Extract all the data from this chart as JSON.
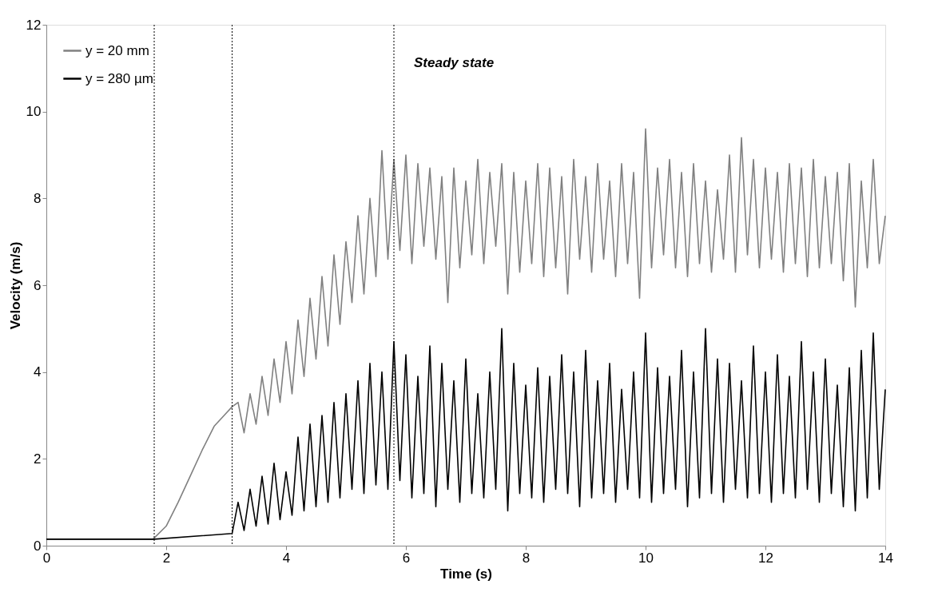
{
  "chart_data": {
    "type": "line",
    "xlabel": "Time (s)",
    "ylabel": "Velocity (m/s)",
    "xlim": [
      0,
      14
    ],
    "xticks": [
      0,
      2,
      4,
      6,
      8,
      10,
      12,
      14
    ],
    "ylim": [
      0,
      12
    ],
    "yticks": [
      0,
      2,
      4,
      6,
      8,
      10,
      12
    ],
    "grid": false,
    "legend": "top left",
    "marker": "none",
    "line_style": "solid",
    "ref_lines": [
      {
        "axis": "x",
        "value": 1.8,
        "label": null,
        "color": "#000000",
        "line_style": "dotted"
      },
      {
        "axis": "x",
        "value": 3.1,
        "label": null,
        "color": "#000000",
        "line_style": "dotted"
      },
      {
        "axis": "x",
        "value": 5.8,
        "label": "Steady state",
        "color": "#000000",
        "line_style": "dotted"
      }
    ],
    "series": [
      {
        "name": "y = 20 mm",
        "color": "#808080",
        "x": [
          0,
          1.78,
          2.0,
          2.2,
          2.4,
          2.6,
          2.8,
          3.0,
          3.1,
          3.2,
          3.3,
          3.4,
          3.5,
          3.6,
          3.7,
          3.8,
          3.9,
          4.0,
          4.1,
          4.2,
          4.3,
          4.4,
          4.5,
          4.6,
          4.7,
          4.8,
          4.9,
          5.0,
          5.1,
          5.2,
          5.3,
          5.4,
          5.5,
          5.6,
          5.7,
          5.8,
          5.9,
          6.0,
          6.1,
          6.2,
          6.3,
          6.4,
          6.5,
          6.6,
          6.7,
          6.8,
          6.9,
          7.0,
          7.1,
          7.2,
          7.3,
          7.4,
          7.5,
          7.6,
          7.7,
          7.8,
          7.9,
          8.0,
          8.1,
          8.2,
          8.3,
          8.4,
          8.5,
          8.6,
          8.7,
          8.8,
          8.9,
          9.0,
          9.1,
          9.2,
          9.3,
          9.4,
          9.5,
          9.6,
          9.7,
          9.8,
          9.9,
          10.0,
          10.1,
          10.2,
          10.3,
          10.4,
          10.5,
          10.6,
          10.7,
          10.8,
          10.9,
          11.0,
          11.1,
          11.2,
          11.3,
          11.4,
          11.5,
          11.6,
          11.7,
          11.8,
          11.9,
          12.0,
          12.1,
          12.2,
          12.3,
          12.4,
          12.5,
          12.6,
          12.7,
          12.8,
          12.9,
          13.0,
          13.1,
          13.2,
          13.3,
          13.4,
          13.5,
          13.6,
          13.7,
          13.8,
          13.9,
          14.0
        ],
        "values": [
          0.15,
          0.15,
          0.45,
          1.0,
          1.6,
          2.2,
          2.75,
          3.05,
          3.2,
          3.3,
          2.6,
          3.5,
          2.8,
          3.9,
          3.0,
          4.3,
          3.3,
          4.7,
          3.5,
          5.2,
          3.9,
          5.7,
          4.3,
          6.2,
          4.6,
          6.7,
          5.1,
          7.0,
          5.6,
          7.6,
          5.8,
          8.0,
          6.2,
          9.1,
          6.6,
          8.9,
          6.8,
          9.0,
          6.5,
          8.8,
          6.9,
          8.7,
          6.6,
          8.5,
          5.6,
          8.7,
          6.4,
          8.4,
          6.7,
          8.9,
          6.5,
          8.6,
          6.9,
          8.8,
          5.8,
          8.6,
          6.3,
          8.4,
          6.5,
          8.8,
          6.2,
          8.7,
          6.4,
          8.5,
          5.8,
          8.9,
          6.6,
          8.5,
          6.3,
          8.8,
          6.6,
          8.4,
          6.2,
          8.8,
          6.5,
          8.6,
          5.7,
          9.6,
          6.4,
          8.7,
          6.7,
          8.9,
          6.4,
          8.6,
          6.2,
          8.8,
          6.5,
          8.4,
          6.3,
          8.2,
          6.6,
          9.0,
          6.3,
          9.4,
          6.7,
          8.9,
          6.4,
          8.7,
          6.6,
          8.6,
          6.3,
          8.8,
          6.5,
          8.7,
          6.2,
          8.9,
          6.4,
          8.5,
          6.5,
          8.6,
          6.1,
          8.8,
          5.5,
          8.4,
          6.4,
          8.9,
          6.5,
          7.6
        ]
      },
      {
        "name": "y = 280 µm",
        "color": "#000000",
        "x": [
          0,
          1.8,
          3.1,
          3.2,
          3.3,
          3.4,
          3.5,
          3.6,
          3.7,
          3.8,
          3.9,
          4.0,
          4.1,
          4.2,
          4.3,
          4.4,
          4.5,
          4.6,
          4.7,
          4.8,
          4.9,
          5.0,
          5.1,
          5.2,
          5.3,
          5.4,
          5.5,
          5.6,
          5.7,
          5.8,
          5.9,
          6.0,
          6.1,
          6.2,
          6.3,
          6.4,
          6.5,
          6.6,
          6.7,
          6.8,
          6.9,
          7.0,
          7.1,
          7.2,
          7.3,
          7.4,
          7.5,
          7.6,
          7.7,
          7.8,
          7.9,
          8.0,
          8.1,
          8.2,
          8.3,
          8.4,
          8.5,
          8.6,
          8.7,
          8.8,
          8.9,
          9.0,
          9.1,
          9.2,
          9.3,
          9.4,
          9.5,
          9.6,
          9.7,
          9.8,
          9.9,
          10.0,
          10.1,
          10.2,
          10.3,
          10.4,
          10.5,
          10.6,
          10.7,
          10.8,
          10.9,
          11.0,
          11.1,
          11.2,
          11.3,
          11.4,
          11.5,
          11.6,
          11.7,
          11.8,
          11.9,
          12.0,
          12.1,
          12.2,
          12.3,
          12.4,
          12.5,
          12.6,
          12.7,
          12.8,
          12.9,
          13.0,
          13.1,
          13.2,
          13.3,
          13.4,
          13.5,
          13.6,
          13.7,
          13.8,
          13.9,
          14.0
        ],
        "values": [
          0.15,
          0.15,
          0.28,
          1.0,
          0.35,
          1.3,
          0.45,
          1.6,
          0.5,
          1.9,
          0.6,
          1.7,
          0.7,
          2.5,
          0.8,
          2.8,
          0.9,
          3.0,
          1.0,
          3.3,
          1.1,
          3.5,
          1.3,
          3.8,
          1.2,
          4.2,
          1.4,
          4.0,
          1.3,
          4.7,
          1.5,
          4.4,
          1.1,
          3.9,
          1.2,
          4.6,
          0.9,
          4.2,
          1.3,
          3.8,
          1.0,
          4.3,
          1.2,
          3.5,
          1.1,
          4.0,
          1.3,
          5.0,
          0.8,
          4.2,
          1.2,
          3.7,
          1.1,
          4.1,
          1.0,
          3.9,
          1.3,
          4.4,
          1.2,
          4.0,
          0.9,
          4.5,
          1.1,
          3.8,
          1.2,
          4.2,
          1.0,
          3.6,
          1.3,
          4.0,
          1.1,
          4.9,
          1.0,
          4.1,
          1.2,
          3.9,
          1.3,
          4.5,
          0.9,
          4.0,
          1.1,
          5.0,
          1.2,
          4.3,
          1.0,
          4.2,
          1.3,
          3.8,
          1.1,
          4.6,
          1.2,
          4.0,
          1.0,
          4.4,
          1.2,
          3.9,
          1.1,
          4.7,
          1.3,
          4.0,
          1.0,
          4.3,
          1.2,
          3.7,
          0.9,
          4.1,
          0.8,
          4.5,
          1.1,
          4.9,
          1.3,
          3.6
        ]
      }
    ]
  }
}
